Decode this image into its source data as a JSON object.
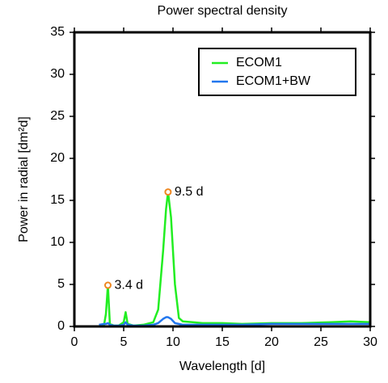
{
  "chart_data": {
    "type": "line",
    "title": "Power spectral density",
    "xlabel": "Wavelength [d]",
    "ylabel": "Power in radial [dm²d]",
    "x": [
      2.5,
      3.0,
      3.2,
      3.4,
      3.6,
      4.0,
      4.5,
      5.0,
      5.2,
      5.4,
      6,
      7,
      8,
      8.5,
      9,
      9.3,
      9.5,
      9.8,
      10.2,
      10.6,
      11,
      12,
      13,
      15,
      17,
      20,
      23,
      26,
      28,
      30
    ],
    "series": [
      {
        "name": "ECOM1",
        "color": "#22ee22",
        "values": [
          0.05,
          0.1,
          1.5,
          4.9,
          0.3,
          0.1,
          0.1,
          0.5,
          1.7,
          0.3,
          0.1,
          0.2,
          0.5,
          2,
          9,
          14,
          16,
          13,
          5,
          1,
          0.6,
          0.5,
          0.4,
          0.4,
          0.3,
          0.4,
          0.4,
          0.5,
          0.6,
          0.5
        ]
      },
      {
        "name": "ECOM1+BW",
        "color": "#2277ee",
        "values": [
          0.2,
          0.3,
          0.3,
          0.4,
          0.2,
          0.1,
          0.1,
          0.2,
          0.5,
          0.2,
          0.1,
          0.1,
          0.2,
          0.4,
          0.9,
          1.1,
          1.1,
          0.9,
          0.4,
          0.3,
          0.2,
          0.2,
          0.2,
          0.2,
          0.2,
          0.3,
          0.3,
          0.3,
          0.3,
          0.3
        ]
      }
    ],
    "annotations": [
      {
        "text": "3.4 d",
        "x": 3.4,
        "y": 4.9,
        "color": "#ee8822"
      },
      {
        "text": "9.5 d",
        "x": 9.5,
        "y": 16,
        "color": "#ee8822"
      }
    ],
    "xlim": [
      0,
      30
    ],
    "xticks": [
      0,
      5,
      10,
      15,
      20,
      25,
      30
    ],
    "ylim": [
      0,
      35
    ],
    "yticks": [
      0,
      5,
      10,
      15,
      20,
      25,
      30,
      35
    ],
    "legend": "upper right",
    "grid": false
  }
}
